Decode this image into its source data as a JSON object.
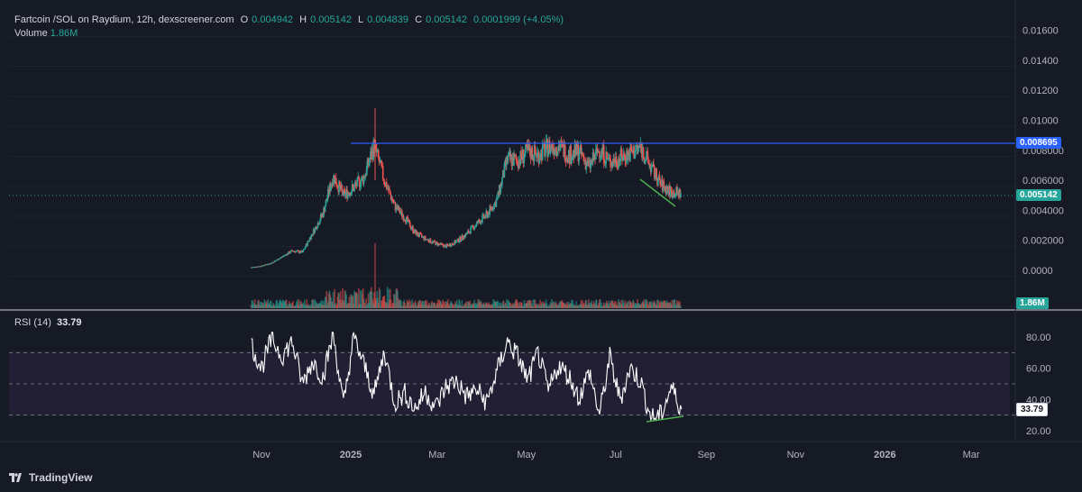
{
  "header": {
    "symbol": "Fartcoin /SOL on Raydium, 12h, dexscreener.com",
    "o_label": "O",
    "o_value": "0.004942",
    "h_label": "H",
    "h_value": "0.005142",
    "l_label": "L",
    "l_value": "0.004839",
    "c_label": "C",
    "c_value": "0.005142",
    "change": "0.0001999 (+4.05%)",
    "volume_label": "Volume",
    "volume_value": "1.86M"
  },
  "price_axis_labels": [
    "0.01600",
    "0.01400",
    "0.01200",
    "0.01000",
    "0.008000",
    "0.006000",
    "0.004000",
    "0.002000",
    "0.0000"
  ],
  "price_tags": {
    "resistance": "0.008695",
    "last": "0.005142",
    "volume": "1.86M"
  },
  "rsi": {
    "label": "RSI (14)",
    "value": "33.79",
    "axis_labels": [
      "80.00",
      "60.00",
      "40.00",
      "20.00"
    ]
  },
  "time_axis_labels": [
    "Nov",
    "2025",
    "Mar",
    "May",
    "Jul",
    "Sep",
    "Nov",
    "2026",
    "Mar"
  ],
  "brand": "TradingView",
  "colors": {
    "up": "#26a69a",
    "down": "#ef5350",
    "line": "#2962ff",
    "trend": "#4caf50",
    "rsi_bg": "#221f35"
  },
  "chart_data": [
    {
      "type": "candlestick",
      "title": "Fartcoin /SOL on Raydium, 12h, dexscreener.com",
      "x": [
        "2024-10-25",
        "2024-11-01",
        "2024-11-08",
        "2024-11-15",
        "2024-11-22",
        "2024-11-29",
        "2024-12-06",
        "2024-12-13",
        "2024-12-20",
        "2024-12-27",
        "2025-01-03",
        "2025-01-10",
        "2025-01-17",
        "2025-01-24",
        "2025-01-31",
        "2025-02-07",
        "2025-02-14",
        "2025-02-21",
        "2025-02-28",
        "2025-03-07",
        "2025-03-14",
        "2025-03-21",
        "2025-03-28",
        "2025-04-04",
        "2025-04-11",
        "2025-04-18",
        "2025-04-25",
        "2025-05-02",
        "2025-05-09",
        "2025-05-16",
        "2025-05-23",
        "2025-05-30",
        "2025-06-06",
        "2025-06-13",
        "2025-06-20",
        "2025-06-27",
        "2025-07-04",
        "2025-07-11",
        "2025-07-18",
        "2025-07-25",
        "2025-08-01",
        "2025-08-08",
        "2025-08-15"
      ],
      "close": [
        0.0002,
        0.0003,
        0.0005,
        0.0009,
        0.0013,
        0.0012,
        0.0025,
        0.0038,
        0.0063,
        0.005,
        0.0055,
        0.0062,
        0.0083,
        0.006,
        0.0043,
        0.0035,
        0.0025,
        0.0021,
        0.0018,
        0.0016,
        0.0019,
        0.0024,
        0.0031,
        0.0037,
        0.0047,
        0.0074,
        0.0073,
        0.0079,
        0.0077,
        0.0082,
        0.0083,
        0.0077,
        0.0079,
        0.0069,
        0.0081,
        0.0072,
        0.0075,
        0.0078,
        0.0082,
        0.0069,
        0.0057,
        0.0052,
        0.005142
      ],
      "ylim": [
        -0.0024,
        0.0172
      ],
      "resistance": 0.008695,
      "last": 0.005142,
      "volume": "1.86M"
    },
    {
      "type": "line",
      "title": "RSI (14)",
      "x": [
        "2024-10-25",
        "2024-11-01",
        "2024-11-08",
        "2024-11-15",
        "2024-11-22",
        "2024-11-29",
        "2024-12-06",
        "2024-12-13",
        "2024-12-20",
        "2024-12-27",
        "2025-01-03",
        "2025-01-10",
        "2025-01-17",
        "2025-01-24",
        "2025-01-31",
        "2025-02-07",
        "2025-02-14",
        "2025-02-21",
        "2025-02-28",
        "2025-03-07",
        "2025-03-14",
        "2025-03-21",
        "2025-03-28",
        "2025-04-04",
        "2025-04-11",
        "2025-04-18",
        "2025-04-25",
        "2025-05-02",
        "2025-05-09",
        "2025-05-16",
        "2025-05-23",
        "2025-05-30",
        "2025-06-06",
        "2025-06-13",
        "2025-06-20",
        "2025-06-27",
        "2025-07-04",
        "2025-07-11",
        "2025-07-18",
        "2025-07-25",
        "2025-08-01",
        "2025-08-08",
        "2025-08-15"
      ],
      "values": [
        75,
        60,
        79,
        68,
        77,
        50,
        65,
        54,
        82,
        36,
        80,
        62,
        43,
        71,
        38,
        44,
        34,
        45,
        35,
        48,
        52,
        42,
        46,
        38,
        58,
        77,
        68,
        52,
        70,
        45,
        62,
        55,
        41,
        58,
        30,
        67,
        40,
        60,
        52,
        28,
        30,
        48,
        33.79
      ],
      "ylim": [
        15,
        90
      ],
      "bands": [
        30,
        50,
        70
      ],
      "value": 33.79
    }
  ]
}
